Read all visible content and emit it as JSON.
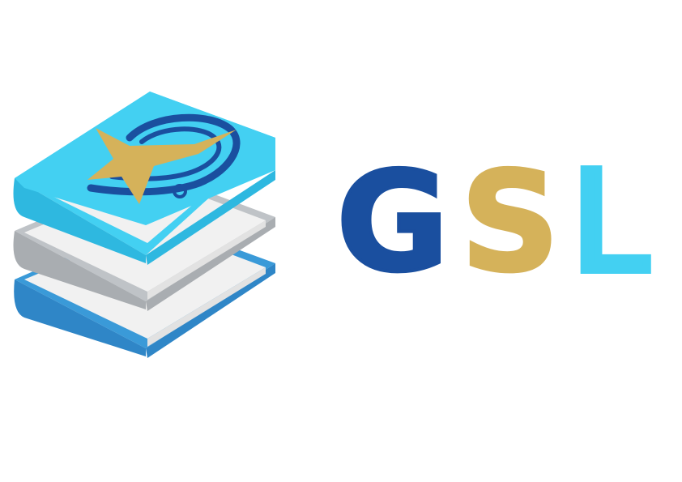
{
  "logo": {
    "wordmark": {
      "letters": [
        {
          "char": "G",
          "color": "#1a4f9f"
        },
        {
          "char": "S",
          "color": "#d5b25a"
        },
        {
          "char": "L",
          "color": "#43d0f2"
        }
      ]
    },
    "icon": {
      "name": "book-stack-icon",
      "colors": {
        "top_cover": "#43d0f2",
        "middle_cover": "#bfc3c7",
        "bottom_cover": "#3a9ad8",
        "pages": "#f1f1f1",
        "star": "#d5b25a",
        "ring": "#1a4f9f"
      }
    }
  }
}
